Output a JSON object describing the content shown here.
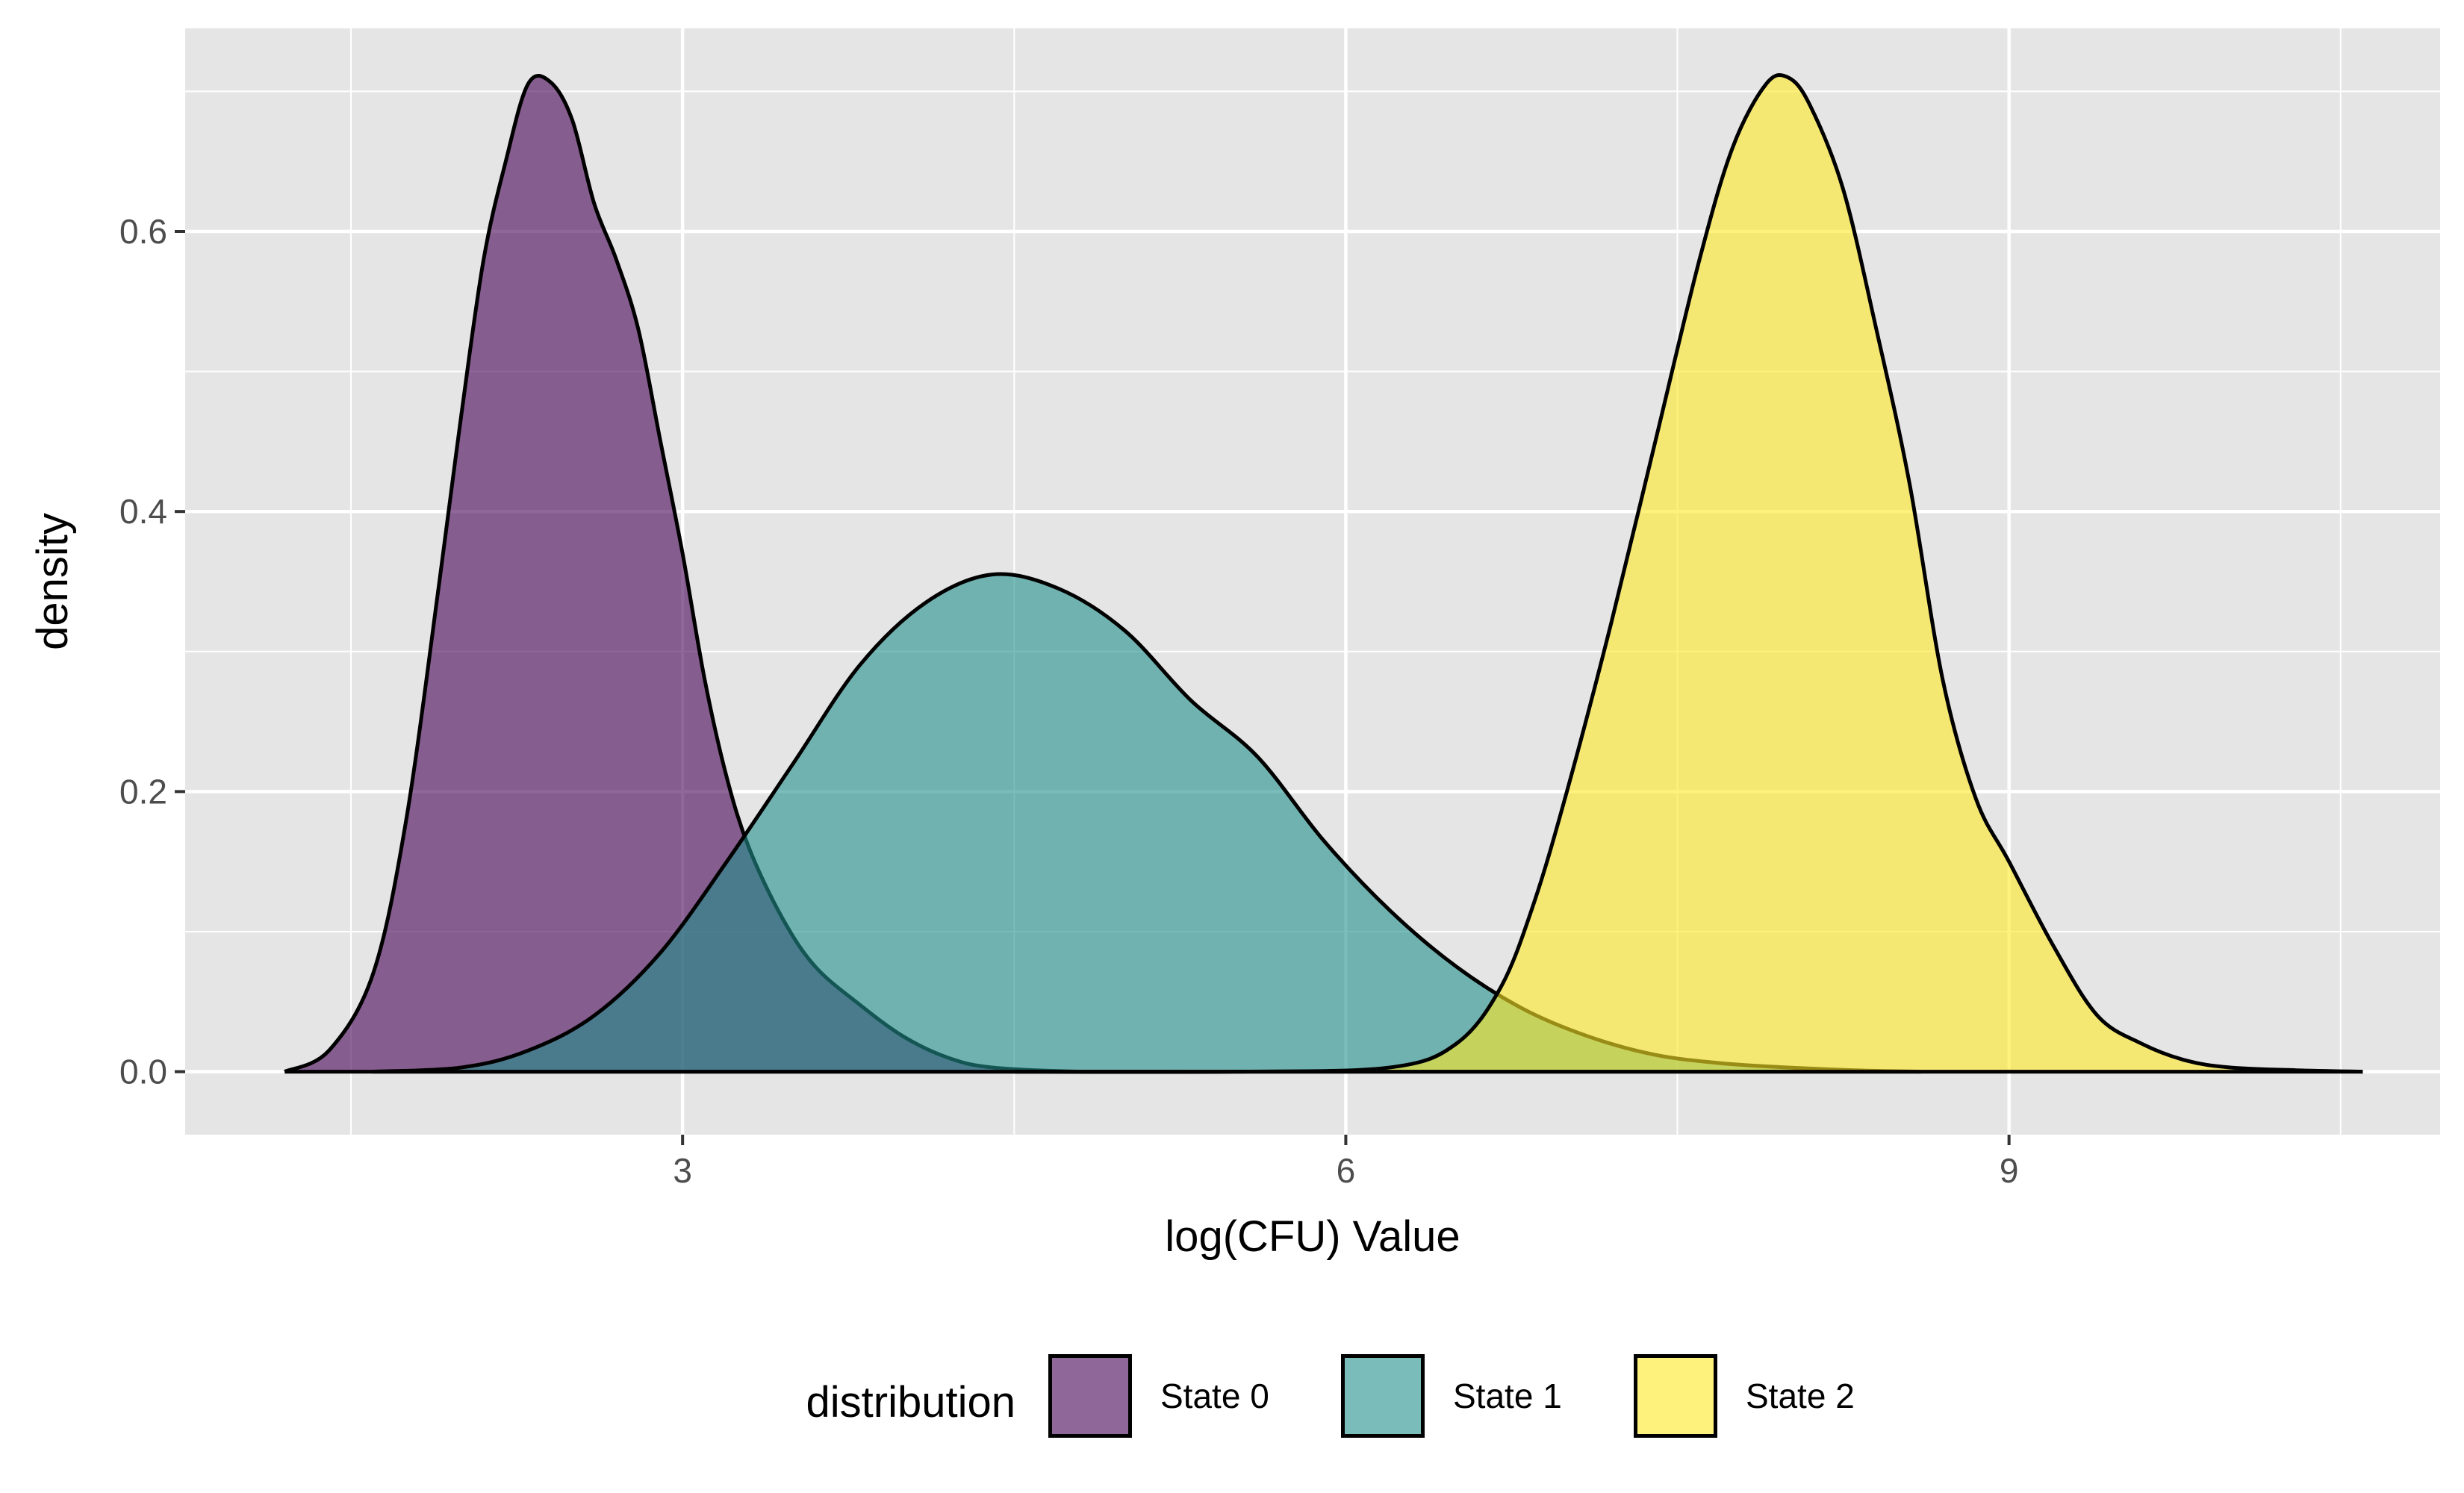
{
  "chart_data": {
    "type": "area",
    "chart_kind": "density",
    "title": "",
    "xlabel": "log(CFU) Value",
    "ylabel": "density",
    "xlim": [
      0.75,
      10.95
    ],
    "ylim": [
      -0.045,
      0.745
    ],
    "x_ticks": [
      3,
      6,
      9
    ],
    "x_tick_labels": [
      "3",
      "6",
      "9"
    ],
    "x_minor_ticks": [
      1.5,
      4.5,
      7.5,
      10.5
    ],
    "y_ticks": [
      0.0,
      0.2,
      0.4,
      0.6
    ],
    "y_tick_labels": [
      "0.0",
      "0.2",
      "0.4",
      "0.6"
    ],
    "y_minor_ticks": [
      0.1,
      0.3,
      0.5,
      0.7
    ],
    "grid": true,
    "panel_background": "#e5e5e5",
    "grid_color": "#ffffff",
    "fill_opacity": 0.6,
    "legend": {
      "title": "distribution",
      "position": "bottom",
      "entries": [
        "State 0",
        "State 1",
        "State 2"
      ]
    },
    "series": [
      {
        "name": "State 0",
        "color": "#440154",
        "x": [
          1.2,
          1.4,
          1.6,
          1.75,
          1.9,
          2.0,
          2.1,
          2.2,
          2.3,
          2.4,
          2.5,
          2.6,
          2.7,
          2.8,
          2.9,
          3.0,
          3.1,
          3.2,
          3.3,
          3.45,
          3.6,
          3.8,
          4.0,
          4.2,
          4.4,
          4.8,
          5.2
        ],
        "y": [
          0.0,
          0.015,
          0.07,
          0.18,
          0.35,
          0.47,
          0.58,
          0.65,
          0.705,
          0.707,
          0.68,
          0.62,
          0.58,
          0.53,
          0.45,
          0.37,
          0.28,
          0.21,
          0.16,
          0.11,
          0.075,
          0.048,
          0.025,
          0.01,
          0.003,
          0.0,
          0.0
        ]
      },
      {
        "name": "State 1",
        "color": "#21908c",
        "x": [
          1.6,
          2.0,
          2.3,
          2.6,
          2.9,
          3.2,
          3.5,
          3.8,
          4.1,
          4.4,
          4.7,
          5.0,
          5.3,
          5.6,
          5.9,
          6.2,
          6.5,
          6.8,
          7.1,
          7.4,
          7.7,
          8.0,
          8.3,
          8.6
        ],
        "y": [
          0.0,
          0.003,
          0.015,
          0.04,
          0.085,
          0.15,
          0.22,
          0.29,
          0.335,
          0.355,
          0.345,
          0.315,
          0.265,
          0.225,
          0.165,
          0.115,
          0.075,
          0.045,
          0.025,
          0.012,
          0.006,
          0.003,
          0.001,
          0.0
        ]
      },
      {
        "name": "State 2",
        "color": "#fde725",
        "x": [
          4.5,
          5.5,
          6.2,
          6.5,
          6.7,
          6.85,
          7.0,
          7.2,
          7.4,
          7.6,
          7.75,
          7.9,
          8.0,
          8.1,
          8.25,
          8.4,
          8.55,
          8.7,
          8.85,
          9.0,
          9.2,
          9.4,
          9.6,
          9.8,
          10.0,
          10.3,
          10.6
        ],
        "y": [
          0.0,
          0.0,
          0.003,
          0.02,
          0.06,
          0.12,
          0.2,
          0.32,
          0.45,
          0.58,
          0.66,
          0.705,
          0.71,
          0.69,
          0.63,
          0.53,
          0.42,
          0.28,
          0.195,
          0.15,
          0.09,
          0.04,
          0.02,
          0.008,
          0.003,
          0.001,
          0.0
        ]
      }
    ]
  }
}
